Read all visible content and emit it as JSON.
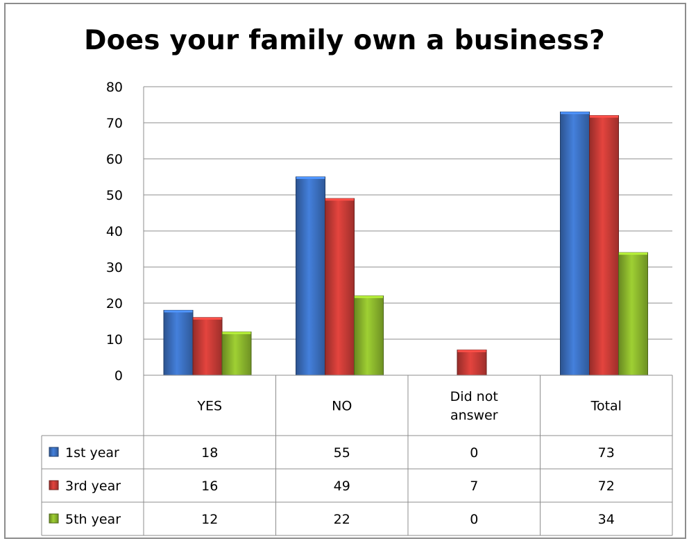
{
  "title": "Does your family own a business?",
  "chart_data": {
    "type": "bar",
    "title": "Does your family own a business?",
    "categories": [
      "YES",
      "NO",
      "Did not\nanswer",
      "Total"
    ],
    "series": [
      {
        "name": "1st year",
        "values": [
          18,
          55,
          0,
          73
        ],
        "color": "#3b6fbf"
      },
      {
        "name": "3rd year",
        "values": [
          16,
          49,
          7,
          72
        ],
        "color": "#c63b36"
      },
      {
        "name": "5th year",
        "values": [
          12,
          22,
          0,
          34
        ],
        "color": "#8ab52c"
      }
    ],
    "yticks": [
      0,
      10,
      20,
      30,
      40,
      50,
      60,
      70,
      80
    ],
    "ylim": [
      0,
      80
    ],
    "grid": true,
    "legend_placement": "data-table-left",
    "data_table": true
  }
}
